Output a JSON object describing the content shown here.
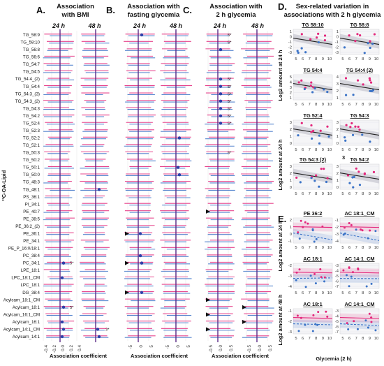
{
  "colors": {
    "female": "#e3277b",
    "male": "#3b73c7",
    "zero_line": "#5a2a86",
    "fit": "#222222"
  },
  "chart_data": [
    {
      "type": "forest",
      "panel": "A.",
      "title_lines": [
        "Association",
        "with BMI"
      ],
      "columns": [
        "24 h",
        "48 h"
      ],
      "xticks": [
        -0.4,
        -0.2,
        0.0,
        0.2,
        0.4
      ],
      "xlabel": "Association coefficient",
      "ylabel": "¹³C-OA-Lipid",
      "rows": [
        "TG_58:9",
        "TG_58:10",
        "TG_56:8",
        "TG_56:6",
        "TG_54:7",
        "TG_54:5",
        "TG_54:4_(2)",
        "TG_54:4",
        "TG_54:3_(3)",
        "TG_54:3_(2)",
        "TG_54:3",
        "TG_54:2",
        "TG_52:4",
        "TG_52:3",
        "TG_52:2",
        "TG_52:1",
        "TG_50:3",
        "TG_50:2",
        "TG_50:1",
        "TG_50:0",
        "TG_48:3",
        "TG_48:1",
        "PS_36:1",
        "PI_34:1",
        "PE_40:7",
        "PE_38:5",
        "PE_36:2_(2)",
        "PE_36:1",
        "PE_34:1",
        "PE_P_16:0/18:1",
        "PC_38:4",
        "PC_34:1",
        "LPE_18:1",
        "LPC_18:1_CM",
        "LPC_18:1",
        "DG_38:4",
        "Acylcarn_18:1_CM",
        "Acylcarn_18:1",
        "Acylcarn_16:1_CM",
        "Acylcarn_16:1",
        "Acylcarn_14:1_CM",
        "Acylcarn_14:1"
      ],
      "annotations": [
        {
          "column": 0,
          "row": "PC_34:1",
          "text": "5*"
        },
        {
          "column": 0,
          "row": "Acylcarn_18:1",
          "text": "5*"
        },
        {
          "column": 1,
          "row": "Acylcarn_14:1_CM",
          "text": "3*"
        }
      ]
    },
    {
      "type": "forest",
      "panel": "B.",
      "title_lines": [
        "Association with",
        "fasting glycemia"
      ],
      "columns": [
        "24 h",
        "48 h"
      ],
      "xticks": [
        -5,
        0,
        5,
        -5,
        0,
        5
      ],
      "xlabel": "Association coefficient",
      "triangles": [
        {
          "column": 0,
          "row": "PE_36:1"
        },
        {
          "column": 0,
          "row": "PC_34:1"
        },
        {
          "column": 0,
          "row": "DG_38:4"
        }
      ]
    },
    {
      "type": "forest",
      "panel": "C.",
      "title_lines": [
        "Association with",
        "2 h glycemia"
      ],
      "columns": [
        "24 h",
        "48 h"
      ],
      "xticks": [
        -0.5,
        0.0,
        0.5,
        -0.5,
        0.0,
        0.5
      ],
      "xlabel": "Association coefficient",
      "annotations": [
        {
          "column": 0,
          "row": "TG_58:9",
          "text": "5*"
        },
        {
          "column": 0,
          "row": "TG_58:10",
          "text": "5*"
        },
        {
          "column": 0,
          "row": "TG_54:4_(2)",
          "text": "5*"
        },
        {
          "column": 0,
          "row": "TG_54:4",
          "text": "5*"
        },
        {
          "column": 0,
          "row": "TG_54:3_(3)",
          "text": "5*"
        },
        {
          "column": 0,
          "row": "TG_54:3_(2)",
          "text": "5*"
        },
        {
          "column": 0,
          "row": "TG_54:3",
          "text": "5*"
        },
        {
          "column": 0,
          "row": "TG_54:2",
          "text": "5*"
        },
        {
          "column": 0,
          "row": "TG_52:4",
          "text": "5*"
        },
        {
          "column": 0,
          "row": "TG_50:3",
          "text": "5*"
        }
      ],
      "triangles": [
        {
          "column": 0,
          "row": "PE_40:7"
        },
        {
          "column": 0,
          "row": "Acylcarn_18:1_CM"
        },
        {
          "column": 0,
          "row": "Acylcarn_16:1_CM"
        },
        {
          "column": 0,
          "row": "Acylcarn_14:1_CM"
        },
        {
          "column": 1,
          "row": "Acylcarn_18:1"
        },
        {
          "column": 1,
          "row": "Acylcarn_16:1"
        }
      ]
    },
    {
      "type": "scatter",
      "panel": "D.",
      "title_lines": [
        "Sex-related variation in",
        "associations with 2 h glycemia"
      ],
      "ylabel_top": "Log2 amount at 24 h",
      "ylabel_bottom": "Log2 amount at 24 h",
      "xticks": [
        5,
        6,
        7,
        8,
        9,
        10
      ],
      "small_plots": [
        {
          "title": "TG 58:10",
          "yticks": [
            1,
            0,
            -1,
            -2,
            -3
          ]
        },
        {
          "title": "TG 58:8",
          "yticks": [
            1,
            0,
            -1,
            -2,
            -3
          ]
        },
        {
          "title": "TG 54:4",
          "yticks": [
            5,
            4,
            3,
            2,
            1
          ]
        },
        {
          "title": "TG 54:4 (2)",
          "yticks": [
            4,
            3,
            2,
            1
          ]
        },
        {
          "title": "TG 52:4",
          "yticks": [
            3,
            2,
            1,
            0
          ]
        },
        {
          "title": "TG 54:3",
          "yticks": [
            3,
            2,
            1,
            0
          ]
        },
        {
          "title": "TG 54:3 (2)",
          "yticks": [
            3,
            2,
            1,
            0
          ]
        },
        {
          "title": "TG 54:2",
          "yticks": [
            3,
            2,
            1,
            0
          ]
        }
      ],
      "stray_label": "3"
    },
    {
      "type": "scatter",
      "panel": "E.",
      "ylabel_top": "Log2 amount at 24 h",
      "ylabel_bottom": "Log2 amount at 48 h",
      "xlabel": "Glycemia (2 h)",
      "xticks": [
        5,
        6,
        7,
        8,
        9,
        10
      ],
      "small_plots": [
        {
          "title": "PE 36:2",
          "yticks": [
            2,
            1,
            0,
            -1
          ]
        },
        {
          "title": "AC 18:1_CM",
          "yticks": [
            -1,
            -2,
            -3,
            -4
          ]
        },
        {
          "title": "AC 18:1",
          "yticks": [
            -2,
            -3,
            -4
          ]
        },
        {
          "title": "AC 14:1_CM",
          "yticks": [
            -3,
            -4,
            -5,
            -6,
            -7
          ]
        },
        {
          "title": "AC 18:1",
          "yticks": [
            -1,
            -2,
            -3
          ]
        },
        {
          "title": "AC 14:1_CM",
          "yticks": [
            -3,
            -4,
            -5,
            -6,
            -7
          ]
        }
      ]
    }
  ]
}
